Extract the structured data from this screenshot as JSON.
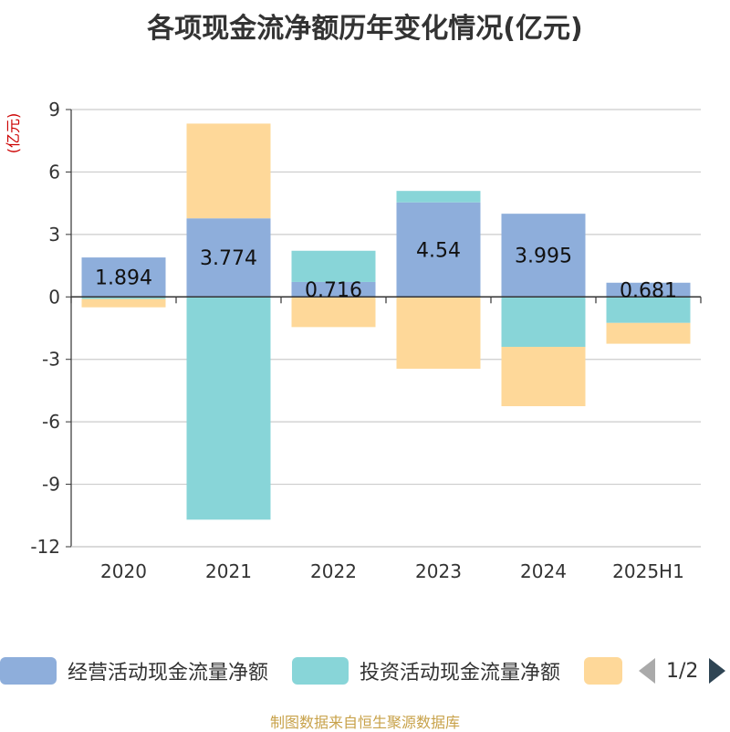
{
  "chart_data": {
    "type": "bar",
    "stacked": true,
    "title": "各项现金流净额历年变化情况(亿元)",
    "unit_label": "(亿元)",
    "categories": [
      "2020",
      "2021",
      "2022",
      "2023",
      "2024",
      "2025H1"
    ],
    "ylim": [
      -12,
      9
    ],
    "yticks": [
      9,
      6,
      3,
      0,
      -3,
      -6,
      -9,
      -12
    ],
    "grid": true,
    "legend_position": "bottom",
    "series": [
      {
        "name": "经营活动现金流量净额",
        "color": "#8eaedb",
        "values": [
          1.894,
          3.774,
          0.716,
          4.54,
          3.995,
          0.681
        ],
        "show_labels": true
      },
      {
        "name": "投资活动现金流量净额",
        "color": "#88d5d8",
        "values": [
          -0.1,
          -10.7,
          1.5,
          0.55,
          -2.4,
          -1.25
        ],
        "show_labels": false
      },
      {
        "name": "",
        "color": "#fed899",
        "values": [
          -0.4,
          4.55,
          -1.45,
          -3.45,
          -2.85,
          -1.0
        ],
        "show_labels": false
      }
    ]
  },
  "legend": {
    "page": "1/2"
  },
  "source_note": "制图数据来自恒生聚源数据库"
}
